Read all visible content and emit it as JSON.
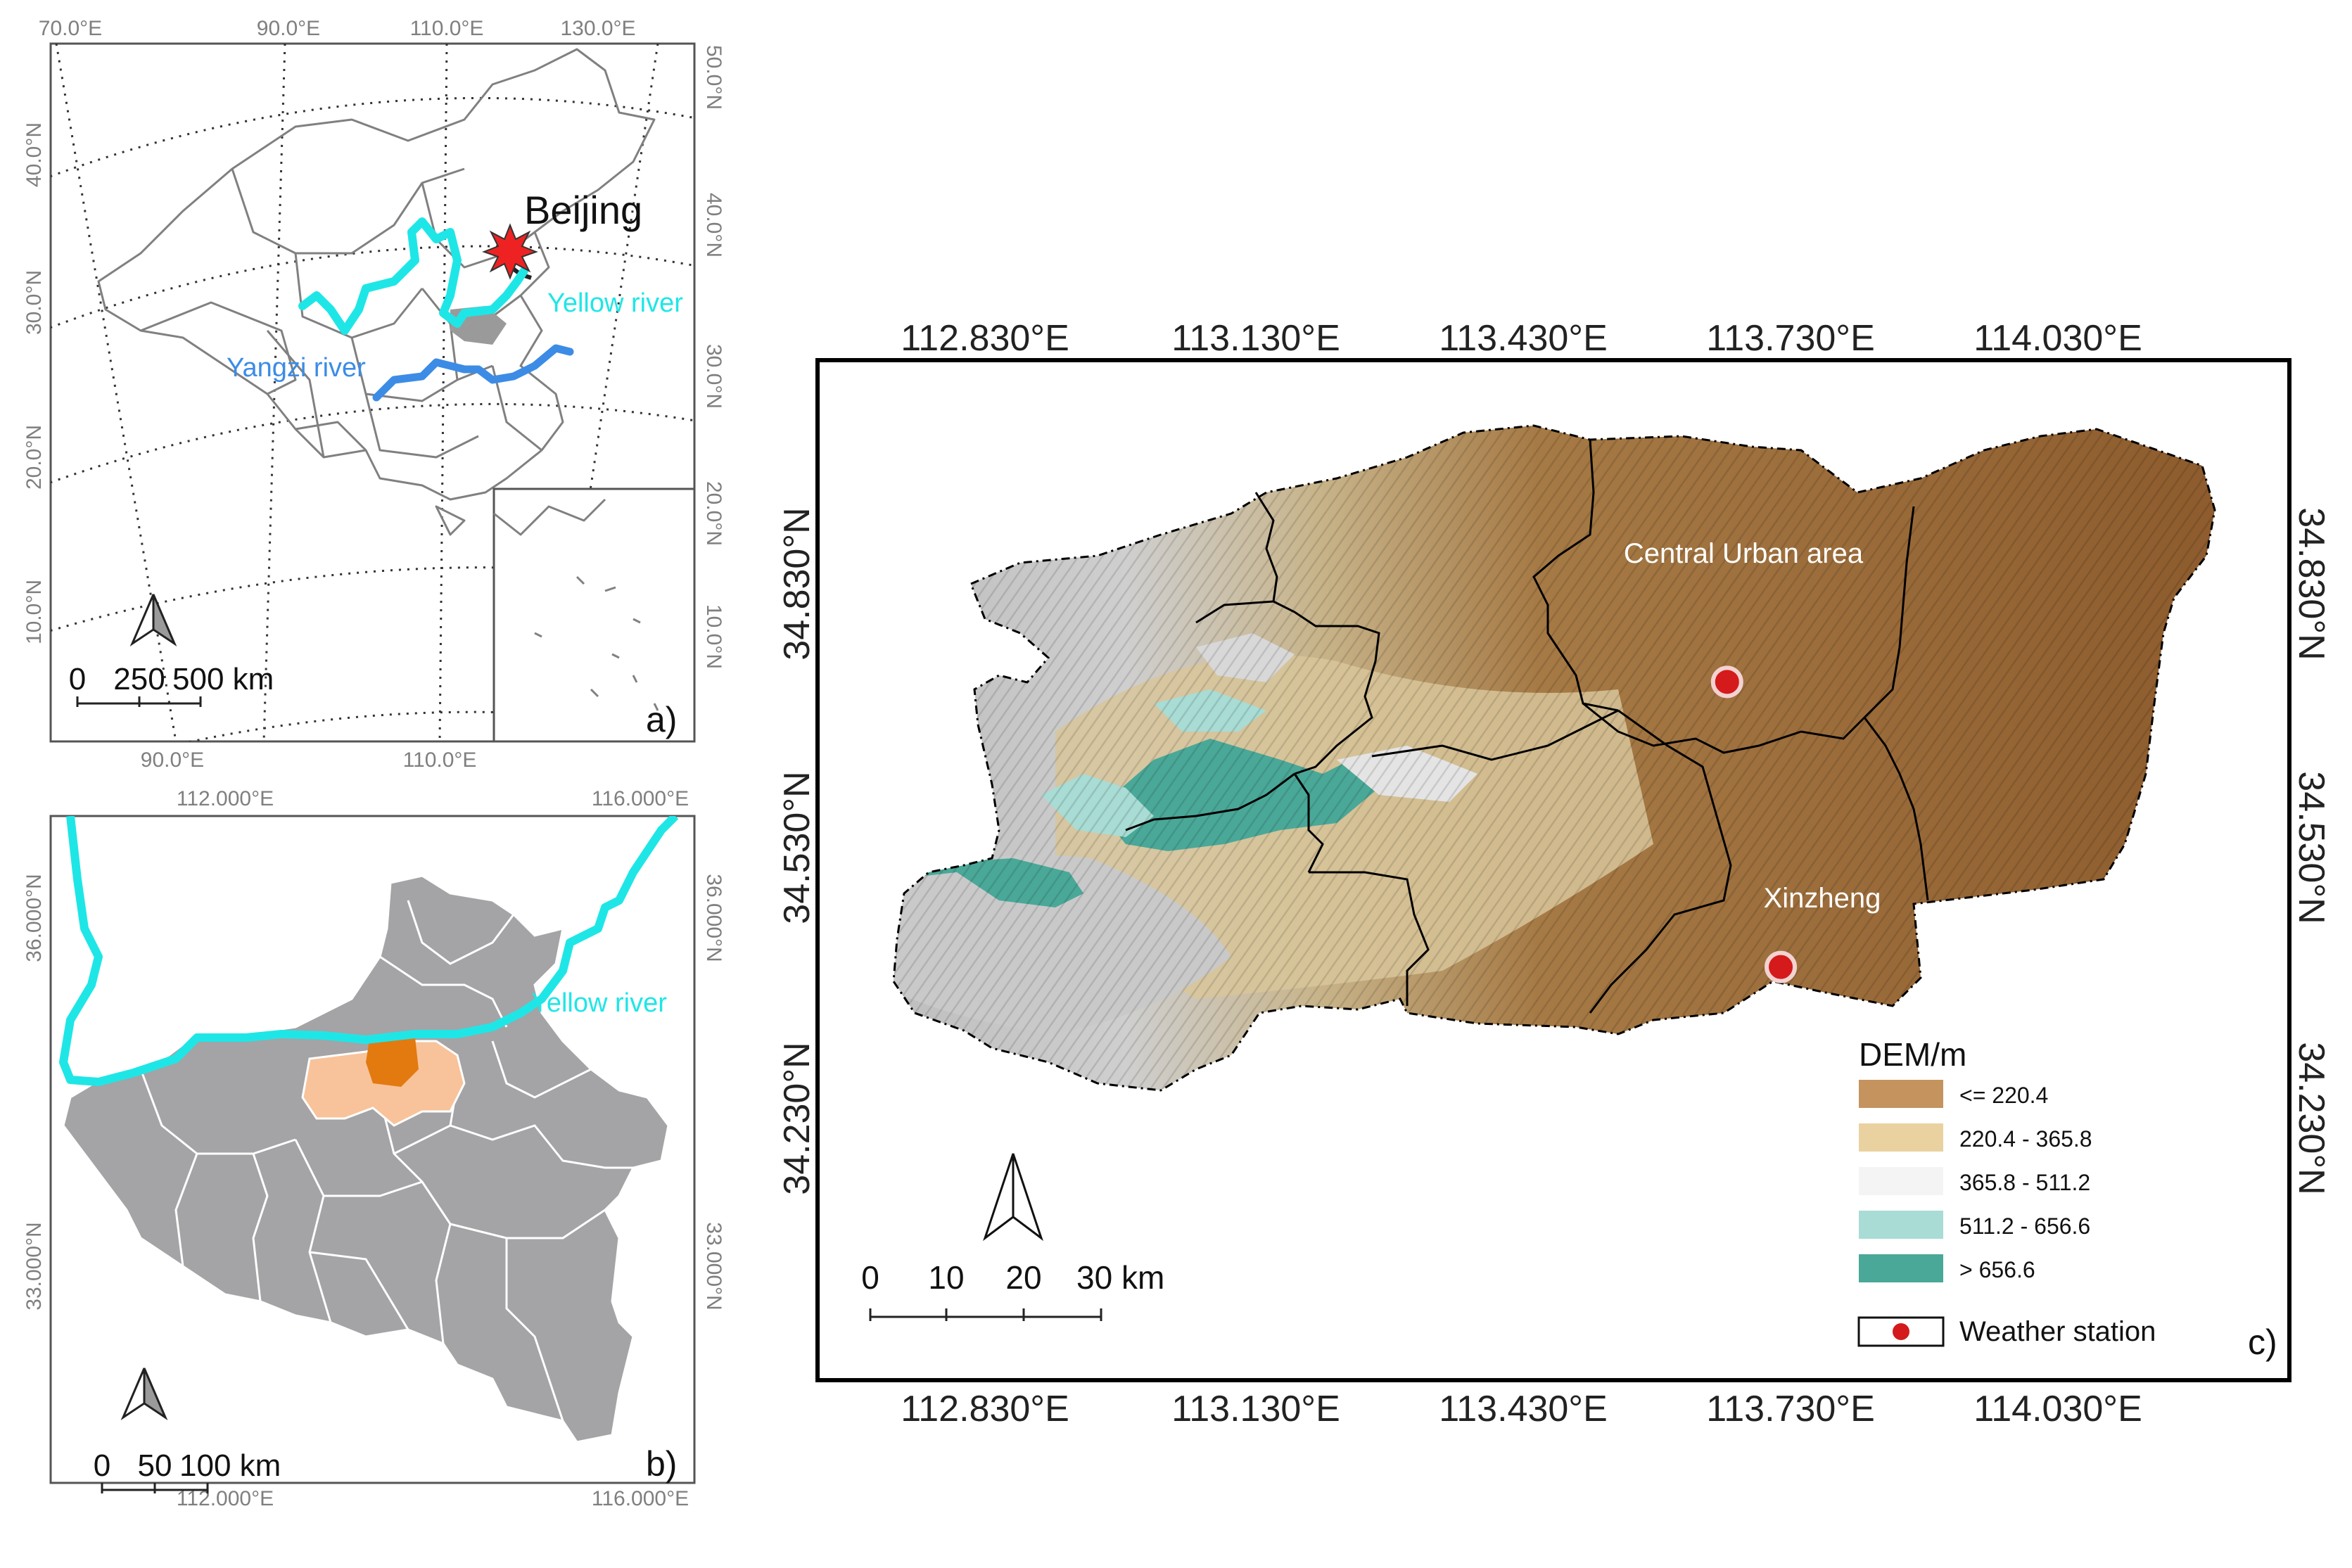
{
  "panel_a": {
    "label": "a)",
    "top_ticks": [
      "70.0°E",
      "90.0°E",
      "110.0°E",
      "130.0°E"
    ],
    "bottom_ticks": [
      "90.0°E",
      "110.0°E"
    ],
    "left_ticks": [
      "40.0°N",
      "30.0°N",
      "20.0°N",
      "10.0°N"
    ],
    "right_ticks": [
      "50.0°N",
      "40.0°N",
      "30.0°N",
      "20.0°N",
      "10.0°N"
    ],
    "capital_label": "Beijing",
    "yellow_river_label": "Yellow river",
    "yangzi_river_label": "Yangzi river",
    "scale_ticks": [
      "0",
      "250",
      "500 km"
    ],
    "colors": {
      "yellow_river": "#1fe6e6",
      "yangzi_river": "#3c8ce6",
      "capital": "#ee2222"
    }
  },
  "panel_b": {
    "label": "b)",
    "top_ticks": [
      "112.000°E",
      "116.000°E"
    ],
    "bottom_ticks": [
      "112.000°E",
      "116.000°E"
    ],
    "left_ticks": [
      "36.000°N",
      "33.000°N"
    ],
    "right_ticks": [
      "36.000°N",
      "33.000°N"
    ],
    "yellow_river_label": "Yellow river",
    "scale_ticks": [
      "0",
      "50",
      "100 km"
    ],
    "colors": {
      "province": "#a4a3a6",
      "zhengzhou": "#f8c39a",
      "urban": "#e27a10",
      "river": "#1fe6e6"
    }
  },
  "panel_c": {
    "label": "c)",
    "top_ticks": [
      "112.830°E",
      "113.130°E",
      "113.430°E",
      "113.730°E",
      "114.030°E"
    ],
    "bottom_ticks": [
      "112.830°E",
      "113.130°E",
      "113.430°E",
      "113.730°E",
      "114.030°E"
    ],
    "left_ticks": [
      "34.830°N",
      "34.530°N",
      "34.230°N"
    ],
    "right_ticks": [
      "34.830°N",
      "34.530°N",
      "34.230°N"
    ],
    "areas": [
      {
        "name": "Central Urban area",
        "station_lon": 113.66,
        "station_lat": 34.72
      },
      {
        "name": "Xinzheng",
        "station_lon": 113.72,
        "station_lat": 34.4
      }
    ],
    "scale_ticks": [
      "0",
      "10",
      "20",
      "30 km"
    ],
    "legend": {
      "title": "DEM/m",
      "classes": [
        {
          "label": "<= 220.4",
          "color": "#c4935e"
        },
        {
          "label": "220.4 - 365.8",
          "color": "#e9d2a0"
        },
        {
          "label": "365.8 - 511.2",
          "color": "#f4f4f4"
        },
        {
          "label": "511.2 - 656.6",
          "color": "#a8dcd4"
        },
        {
          "label": "> 656.6",
          "color": "#4aa898"
        }
      ],
      "station_label": "Weather station",
      "station_color": "#d41a1a"
    }
  }
}
